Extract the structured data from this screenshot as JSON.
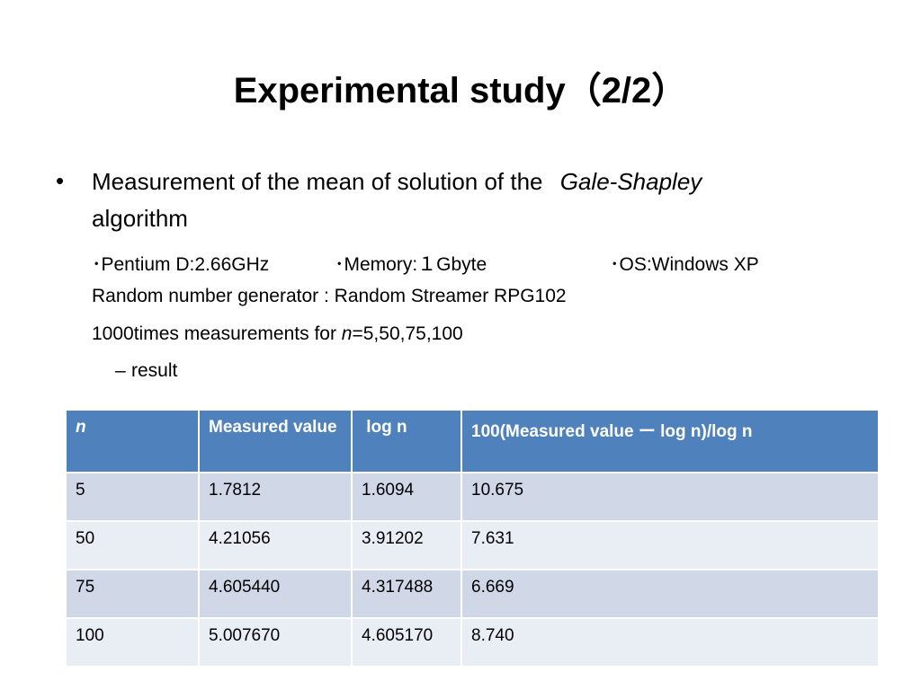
{
  "slide": {
    "title": "Experimental study（2/2）",
    "bullet_symbol": "•",
    "bullet_text_1": "Measurement  of  the mean of solution of  the ",
    "bullet_text_italic": "Gale-Shapley",
    "bullet_text_2": "algorithm",
    "spec_cpu": "･Pentium D:2.66GHz",
    "spec_memory": "･Memory:１Gbyte",
    "spec_os": "･OS:Windows XP",
    "rng_line": "Random number generator : Random Streamer RPG102",
    "times_prefix": "1000times measurements for ",
    "times_var": "n",
    "times_suffix": "=5,50,75,100",
    "dash_symbol": "–",
    "result_label": "result"
  },
  "table": {
    "headers": [
      "n",
      "Measured value",
      " log n",
      "100(Measured value ー log n)/log n"
    ],
    "rows": [
      [
        "5",
        "1.7812",
        "1.6094",
        "10.675"
      ],
      [
        "50",
        "4.21056",
        "3.91202",
        "7.631"
      ],
      [
        "75",
        "4.605440",
        "4.317488",
        "6.669"
      ],
      [
        "100",
        "5.007670",
        "4.605170",
        "8.740"
      ]
    ]
  },
  "colors": {
    "header_bg": "#4f81bd",
    "row_odd_bg": "#d0d8e8",
    "row_even_bg": "#e9edf4"
  }
}
